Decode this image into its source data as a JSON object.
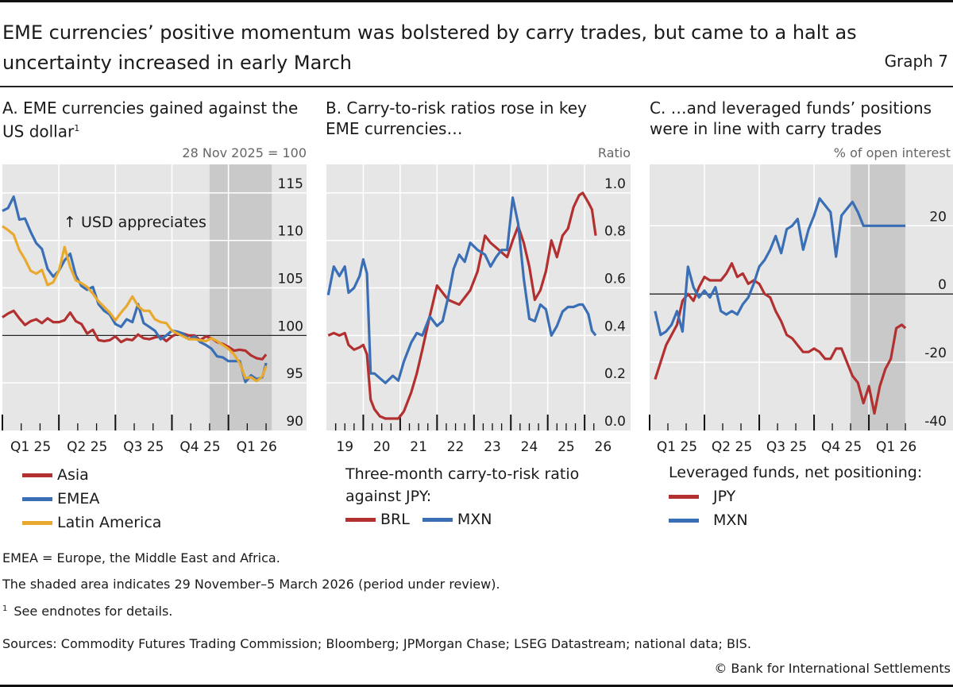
{
  "header": {
    "title": "EME currencies’ positive momentum was bolstered by carry trades, but came to a halt as uncertainty increased in early March",
    "graph_number": "Graph 7"
  },
  "colors": {
    "red": "#b23030",
    "blue": "#3a6fb5",
    "yellow": "#e8a92e",
    "plot_bg": "#e6e6e6",
    "shade": "#c9c9c9",
    "grid": "#ffffff"
  },
  "panels": {
    "a": {
      "title": "A. EME currencies gained against the US dollar",
      "sup": "1",
      "unit": "28 Nov 2025 = 100",
      "annotation": "↑ USD appreciates",
      "legend": [
        {
          "label": "Asia",
          "color": "#b23030"
        },
        {
          "label": "EMEA",
          "color": "#3a6fb5"
        },
        {
          "label": "Latin America",
          "color": "#e8a92e"
        }
      ]
    },
    "b": {
      "title": "B. Carry-to-risk ratios rose in key EME currencies…",
      "unit": "Ratio",
      "legend_title": "Three-month carry-to-risk ratio against JPY:",
      "legend": [
        {
          "label": "BRL",
          "color": "#b23030"
        },
        {
          "label": "MXN",
          "color": "#3a6fb5"
        }
      ]
    },
    "c": {
      "title": "C. …and leveraged funds’ positions were in line with carry trades",
      "unit": "% of open interest",
      "legend_title": "Leveraged funds, net positioning:",
      "legend": [
        {
          "label": "JPY",
          "color": "#b23030"
        },
        {
          "label": "MXN",
          "color": "#3a6fb5"
        }
      ]
    }
  },
  "notes": {
    "emea": "EMEA = Europe, the Middle East and Africa.",
    "shaded": "The shaded area indicates 29 November–5 March 2026 (period under review).",
    "footnote_mark": "1",
    "footnote": "See endnotes for details.",
    "sources": "Sources: Commodity Futures Trading Commission; Bloomberg; JPMorgan Chase; LSEG Datastream; national data; BIS.",
    "copyright": "© Bank for International Settlements"
  },
  "chart_data": [
    {
      "type": "line",
      "title": "A. EME currencies gained against the US dollar",
      "ylabel": "28 Nov 2025 = 100",
      "ylim": [
        90,
        118
      ],
      "yticks": [
        90,
        95,
        100,
        105,
        110,
        115
      ],
      "xlim": [
        0,
        14.3
      ],
      "xticks_labels": [
        "Q1 25",
        "Q2 25",
        "Q3 25",
        "Q4 25",
        "Q1 26"
      ],
      "xticks_at": [
        1.5,
        4.5,
        7.5,
        10.5,
        13.5
      ],
      "shade": [
        11.0,
        14.3
      ],
      "reference_line": 100,
      "series": [
        {
          "name": "Asia",
          "color": "red",
          "x": [
            0,
            0.3,
            0.6,
            0.9,
            1.2,
            1.5,
            1.8,
            2.1,
            2.4,
            2.7,
            3.0,
            3.3,
            3.6,
            3.9,
            4.2,
            4.5,
            4.8,
            5.1,
            5.4,
            5.7,
            6.0,
            6.3,
            6.6,
            6.9,
            7.2,
            7.5,
            7.8,
            8.1,
            8.4,
            8.7,
            9.0,
            9.3,
            9.6,
            9.9,
            10.2,
            10.5,
            10.8,
            11.1,
            11.4,
            11.7,
            12.0,
            12.3,
            12.6,
            12.9,
            13.2,
            13.5,
            13.8,
            14.0
          ],
          "values": [
            101.9,
            102.3,
            102.6,
            101.8,
            101.1,
            101.5,
            101.7,
            101.3,
            101.8,
            101.4,
            101.4,
            101.6,
            102.4,
            101.5,
            101.2,
            100.2,
            100.6,
            99.5,
            99.4,
            99.5,
            99.9,
            99.3,
            99.6,
            99.5,
            100.1,
            99.7,
            99.6,
            99.8,
            99.9,
            99.4,
            99.9,
            100.2,
            100.2,
            100.0,
            100.0,
            99.5,
            99.9,
            99.7,
            99.3,
            99.1,
            98.8,
            98.4,
            98.5,
            98.4,
            97.9,
            97.6,
            97.5,
            98.0
          ]
        },
        {
          "name": "EMEA",
          "color": "blue",
          "x": [
            0,
            0.3,
            0.6,
            0.9,
            1.2,
            1.5,
            1.8,
            2.1,
            2.4,
            2.7,
            3.0,
            3.3,
            3.6,
            3.9,
            4.2,
            4.5,
            4.8,
            5.1,
            5.4,
            5.7,
            6.0,
            6.3,
            6.6,
            6.9,
            7.2,
            7.5,
            7.8,
            8.1,
            8.4,
            8.7,
            9.0,
            9.3,
            9.6,
            9.9,
            10.2,
            10.5,
            10.8,
            11.1,
            11.4,
            11.7,
            12.0,
            12.3,
            12.6,
            12.9,
            13.2,
            13.5,
            13.8,
            14.0
          ],
          "values": [
            113.1,
            113.4,
            114.6,
            112.2,
            112.3,
            110.9,
            109.7,
            109.1,
            107.0,
            106.2,
            106.8,
            107.9,
            108.6,
            106.3,
            105.2,
            104.8,
            105.1,
            103.3,
            102.6,
            102.2,
            101.2,
            100.9,
            101.7,
            101.4,
            103.3,
            101.3,
            100.9,
            100.5,
            99.6,
            100.0,
            100.5,
            100.4,
            100.2,
            99.6,
            99.9,
            99.3,
            99.0,
            98.6,
            97.8,
            97.7,
            97.3,
            97.3,
            97.3,
            95.1,
            95.8,
            95.4,
            95.6,
            97.1
          ]
        },
        {
          "name": "Latin America",
          "color": "yellow",
          "x": [
            0,
            0.3,
            0.6,
            0.9,
            1.2,
            1.5,
            1.8,
            2.1,
            2.4,
            2.7,
            3.0,
            3.3,
            3.6,
            3.9,
            4.2,
            4.5,
            4.8,
            5.1,
            5.4,
            5.7,
            6.0,
            6.3,
            6.6,
            6.9,
            7.2,
            7.5,
            7.8,
            8.1,
            8.4,
            8.7,
            9.0,
            9.3,
            9.6,
            9.9,
            10.2,
            10.5,
            10.8,
            11.1,
            11.4,
            11.7,
            12.0,
            12.3,
            12.6,
            12.9,
            13.2,
            13.5,
            13.8,
            14.0
          ],
          "values": [
            111.5,
            111.1,
            110.6,
            109.0,
            108.0,
            106.8,
            106.5,
            106.9,
            105.3,
            105.6,
            106.8,
            109.3,
            107.2,
            105.8,
            105.5,
            105.1,
            104.4,
            103.6,
            103.0,
            102.4,
            101.6,
            102.4,
            103.1,
            104.1,
            103.1,
            102.6,
            102.6,
            101.7,
            101.4,
            101.3,
            100.5,
            100.2,
            99.9,
            99.6,
            99.6,
            99.5,
            99.4,
            99.7,
            99.4,
            99.0,
            98.6,
            98.0,
            97.1,
            95.5,
            95.6,
            95.2,
            95.7,
            96.8
          ]
        }
      ]
    },
    {
      "type": "line",
      "title": "B. Carry-to-risk ratios rose in key EME currencies…",
      "ylabel": "Ratio",
      "ylim": [
        0.0,
        1.12
      ],
      "yticks": [
        0.0,
        0.2,
        0.4,
        0.6,
        0.8,
        1.0
      ],
      "xlim": [
        2019.0,
        2026.6
      ],
      "xticks_labels": [
        "19",
        "20",
        "21",
        "22",
        "23",
        "24",
        "25",
        "26"
      ],
      "xticks_at": [
        2019.5,
        2020.5,
        2021.5,
        2022.5,
        2023.5,
        2024.5,
        2025.5,
        2026.5
      ],
      "series": [
        {
          "name": "BRL",
          "color": "red",
          "x": [
            2019.05,
            2019.2,
            2019.35,
            2019.5,
            2019.6,
            2019.75,
            2019.9,
            2020.0,
            2020.1,
            2020.2,
            2020.3,
            2020.45,
            2020.6,
            2020.8,
            2020.95,
            2021.1,
            2021.3,
            2021.45,
            2021.6,
            2021.8,
            2022.0,
            2022.15,
            2022.3,
            2022.45,
            2022.6,
            2022.75,
            2022.9,
            2023.1,
            2023.3,
            2023.45,
            2023.6,
            2023.75,
            2023.9,
            2024.05,
            2024.2,
            2024.35,
            2024.5,
            2024.65,
            2024.8,
            2024.95,
            2025.1,
            2025.25,
            2025.4,
            2025.55,
            2025.7,
            2025.85,
            2025.95,
            2026.1,
            2026.2,
            2026.3
          ],
          "values": [
            0.4,
            0.41,
            0.4,
            0.41,
            0.36,
            0.34,
            0.35,
            0.36,
            0.32,
            0.13,
            0.09,
            0.06,
            0.05,
            0.05,
            0.05,
            0.08,
            0.16,
            0.24,
            0.34,
            0.48,
            0.61,
            0.58,
            0.55,
            0.54,
            0.53,
            0.56,
            0.59,
            0.67,
            0.82,
            0.79,
            0.77,
            0.75,
            0.73,
            0.8,
            0.86,
            0.79,
            0.69,
            0.55,
            0.59,
            0.67,
            0.8,
            0.73,
            0.82,
            0.85,
            0.94,
            0.99,
            1.0,
            0.96,
            0.93,
            0.82
          ]
        },
        {
          "name": "MXN",
          "color": "blue",
          "x": [
            2019.05,
            2019.2,
            2019.35,
            2019.5,
            2019.6,
            2019.75,
            2019.9,
            2020.0,
            2020.1,
            2020.2,
            2020.3,
            2020.45,
            2020.6,
            2020.8,
            2020.95,
            2021.1,
            2021.3,
            2021.45,
            2021.6,
            2021.8,
            2022.0,
            2022.15,
            2022.3,
            2022.45,
            2022.6,
            2022.75,
            2022.9,
            2023.1,
            2023.3,
            2023.45,
            2023.6,
            2023.75,
            2023.9,
            2024.05,
            2024.2,
            2024.35,
            2024.5,
            2024.65,
            2024.8,
            2024.95,
            2025.1,
            2025.25,
            2025.4,
            2025.55,
            2025.7,
            2025.85,
            2025.95,
            2026.1,
            2026.2,
            2026.3
          ],
          "values": [
            0.57,
            0.69,
            0.65,
            0.69,
            0.58,
            0.6,
            0.65,
            0.72,
            0.66,
            0.24,
            0.24,
            0.22,
            0.2,
            0.23,
            0.21,
            0.29,
            0.37,
            0.41,
            0.4,
            0.48,
            0.44,
            0.46,
            0.56,
            0.68,
            0.74,
            0.71,
            0.79,
            0.76,
            0.74,
            0.69,
            0.73,
            0.76,
            0.76,
            0.98,
            0.87,
            0.64,
            0.47,
            0.46,
            0.53,
            0.51,
            0.4,
            0.44,
            0.5,
            0.52,
            0.52,
            0.53,
            0.53,
            0.49,
            0.42,
            0.4
          ]
        }
      ]
    },
    {
      "type": "line",
      "title": "C. …and leveraged funds’ positions were in line with carry trades",
      "ylabel": "% of open interest",
      "ylim": [
        -40,
        38
      ],
      "yticks": [
        -40,
        -20,
        0,
        20
      ],
      "xlim": [
        0,
        14.3
      ],
      "xticks_labels": [
        "Q1 25",
        "Q2 25",
        "Q3 25",
        "Q4 25",
        "Q1 26"
      ],
      "xticks_at": [
        1.5,
        4.5,
        7.5,
        10.5,
        13.5
      ],
      "shade": [
        11.0,
        14.0
      ],
      "reference_line": 0,
      "series": [
        {
          "name": "JPY",
          "color": "red",
          "x": [
            0.3,
            0.6,
            0.9,
            1.2,
            1.5,
            1.8,
            2.1,
            2.4,
            2.7,
            3.0,
            3.3,
            3.6,
            3.9,
            4.2,
            4.5,
            4.8,
            5.1,
            5.4,
            5.7,
            6.0,
            6.3,
            6.6,
            6.9,
            7.2,
            7.5,
            7.8,
            8.1,
            8.4,
            8.7,
            9.0,
            9.3,
            9.6,
            9.9,
            10.2,
            10.5,
            10.8,
            11.1,
            11.4,
            11.7,
            12.0,
            12.3,
            12.6,
            12.9,
            13.2,
            13.5,
            13.8,
            14.0
          ],
          "values": [
            -25,
            -20,
            -15,
            -12,
            -9,
            -2,
            0,
            -2,
            2,
            5,
            4,
            4,
            4,
            6,
            9,
            5,
            6,
            3,
            4,
            3,
            0,
            -1,
            -5,
            -8,
            -12,
            -13,
            -15,
            -17,
            -17,
            -16,
            -17,
            -19,
            -19,
            -16,
            -16,
            -20,
            -24,
            -26,
            -32,
            -27,
            -35,
            -27,
            -22,
            -19,
            -10,
            -9,
            -10
          ]
        },
        {
          "name": "MXN",
          "color": "blue",
          "x": [
            0.3,
            0.6,
            0.9,
            1.2,
            1.5,
            1.8,
            2.1,
            2.4,
            2.7,
            3.0,
            3.3,
            3.6,
            3.9,
            4.2,
            4.5,
            4.8,
            5.1,
            5.4,
            5.7,
            6.0,
            6.3,
            6.6,
            6.9,
            7.2,
            7.5,
            7.8,
            8.1,
            8.4,
            8.7,
            9.0,
            9.3,
            9.6,
            9.9,
            10.2,
            10.5,
            10.8,
            11.1,
            11.4,
            11.7,
            12.0,
            12.3,
            12.6,
            12.9,
            13.2,
            13.5,
            13.8,
            14.0
          ],
          "values": [
            -5,
            -12,
            -11,
            -9,
            -5,
            -11,
            8,
            2,
            -1,
            1,
            -1,
            2,
            -5,
            -6,
            -5,
            -6,
            -3,
            -1,
            3,
            8,
            10,
            13,
            17,
            12,
            19,
            20,
            22,
            13,
            19,
            23,
            28,
            26,
            24,
            11,
            23,
            25,
            27,
            24,
            20,
            20,
            20,
            20,
            20,
            20,
            20,
            20,
            20
          ]
        }
      ]
    }
  ]
}
